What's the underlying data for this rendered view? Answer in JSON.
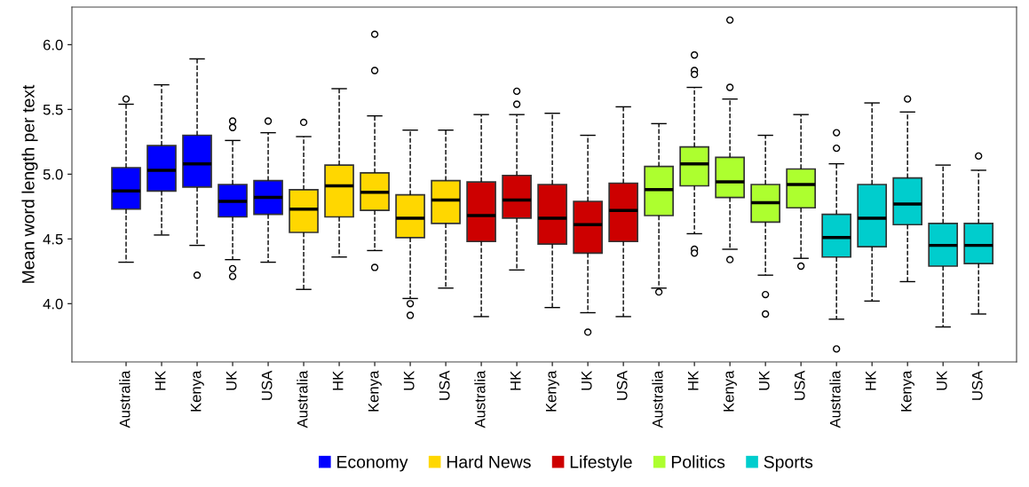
{
  "chart_data": {
    "type": "box",
    "ylabel": "Mean word length per text",
    "categories": [
      "Australia",
      "HK",
      "Kenya",
      "UK",
      "USA",
      "Australia",
      "HK",
      "Kenya",
      "UK",
      "USA",
      "Australia",
      "HK",
      "Kenya",
      "UK",
      "USA",
      "Australia",
      "HK",
      "Kenya",
      "UK",
      "USA",
      "Australia",
      "HK",
      "Kenya",
      "UK",
      "USA"
    ],
    "ylim": [
      3.55,
      6.29
    ],
    "yticks": [
      {
        "value": 4,
        "label": "4.0"
      },
      {
        "value": 4.5,
        "label": "4.5"
      },
      {
        "value": 5,
        "label": "5.0"
      },
      {
        "value": 5.5,
        "label": "5.5"
      },
      {
        "value": 6,
        "label": "6.0"
      }
    ],
    "grid": false,
    "legend": "bottom",
    "line_style": "dashed",
    "series": [
      {
        "name": "Economy",
        "color": "#0000ff",
        "boxes": [
          {
            "low": 4.32,
            "q1": 4.73,
            "median": 4.87,
            "q3": 5.05,
            "high": 5.54,
            "outliers": [
              5.58
            ]
          },
          {
            "low": 4.53,
            "q1": 4.87,
            "median": 5.03,
            "q3": 5.22,
            "high": 5.69
          },
          {
            "low": 4.45,
            "q1": 4.9,
            "median": 5.08,
            "q3": 5.3,
            "high": 5.89,
            "outliers": [
              4.22
            ]
          },
          {
            "low": 4.34,
            "q1": 4.67,
            "median": 4.79,
            "q3": 4.92,
            "high": 5.26,
            "outliers": [
              5.41,
              5.36,
              4.27,
              4.21
            ]
          },
          {
            "low": 4.32,
            "q1": 4.69,
            "median": 4.82,
            "q3": 4.95,
            "high": 5.32,
            "outliers": [
              5.41
            ]
          },
          null,
          null,
          null,
          null,
          null,
          null,
          null,
          null,
          null,
          null,
          null,
          null,
          null,
          null,
          null,
          null,
          null,
          null,
          null,
          null
        ]
      },
      {
        "name": "Hard News",
        "color": "#ffd700",
        "boxes": [
          null,
          null,
          null,
          null,
          null,
          {
            "low": 4.11,
            "q1": 4.55,
            "median": 4.73,
            "q3": 4.88,
            "high": 5.29,
            "outliers": [
              5.4
            ]
          },
          {
            "low": 4.36,
            "q1": 4.67,
            "median": 4.91,
            "q3": 5.07,
            "high": 5.66
          },
          {
            "low": 4.41,
            "q1": 4.72,
            "median": 4.86,
            "q3": 5.01,
            "high": 5.45,
            "outliers": [
              6.08,
              5.8,
              4.28
            ]
          },
          {
            "low": 4.04,
            "q1": 4.51,
            "median": 4.66,
            "q3": 4.84,
            "high": 5.34,
            "outliers": [
              4.0,
              3.91
            ]
          },
          {
            "low": 4.12,
            "q1": 4.62,
            "median": 4.8,
            "q3": 4.95,
            "high": 5.34
          },
          null,
          null,
          null,
          null,
          null,
          null,
          null,
          null,
          null,
          null,
          null,
          null,
          null,
          null,
          null
        ]
      },
      {
        "name": "Lifestyle",
        "color": "#cd0000",
        "boxes": [
          null,
          null,
          null,
          null,
          null,
          null,
          null,
          null,
          null,
          null,
          {
            "low": 3.9,
            "q1": 4.48,
            "median": 4.68,
            "q3": 4.94,
            "high": 5.46
          },
          {
            "low": 4.26,
            "q1": 4.66,
            "median": 4.8,
            "q3": 4.99,
            "high": 5.46,
            "outliers": [
              5.64,
              5.54
            ]
          },
          {
            "low": 3.97,
            "q1": 4.46,
            "median": 4.66,
            "q3": 4.92,
            "high": 5.47
          },
          {
            "low": 3.93,
            "q1": 4.39,
            "median": 4.61,
            "q3": 4.79,
            "high": 5.3,
            "outliers": [
              3.78
            ]
          },
          {
            "low": 3.9,
            "q1": 4.48,
            "median": 4.72,
            "q3": 4.93,
            "high": 5.52
          },
          null,
          null,
          null,
          null,
          null,
          null,
          null,
          null,
          null,
          null
        ]
      },
      {
        "name": "Politics",
        "color": "#adff2f",
        "boxes": [
          null,
          null,
          null,
          null,
          null,
          null,
          null,
          null,
          null,
          null,
          null,
          null,
          null,
          null,
          null,
          {
            "low": 4.12,
            "q1": 4.68,
            "median": 4.88,
            "q3": 5.06,
            "high": 5.39,
            "outliers": [
              4.09
            ]
          },
          {
            "low": 4.54,
            "q1": 4.91,
            "median": 5.08,
            "q3": 5.21,
            "high": 5.67,
            "outliers": [
              5.92,
              5.8,
              5.77,
              4.42,
              4.39
            ]
          },
          {
            "low": 4.42,
            "q1": 4.82,
            "median": 4.94,
            "q3": 5.13,
            "high": 5.58,
            "outliers": [
              6.19,
              5.67,
              4.34
            ]
          },
          {
            "low": 4.22,
            "q1": 4.63,
            "median": 4.78,
            "q3": 4.92,
            "high": 5.3,
            "outliers": [
              4.07,
              3.92
            ]
          },
          {
            "low": 4.35,
            "q1": 4.74,
            "median": 4.92,
            "q3": 5.04,
            "high": 5.46,
            "outliers": [
              4.29
            ]
          },
          null,
          null,
          null,
          null,
          null
        ]
      },
      {
        "name": "Sports",
        "color": "#00cdcd",
        "boxes": [
          null,
          null,
          null,
          null,
          null,
          null,
          null,
          null,
          null,
          null,
          null,
          null,
          null,
          null,
          null,
          null,
          null,
          null,
          null,
          null,
          {
            "low": 3.88,
            "q1": 4.36,
            "median": 4.51,
            "q3": 4.69,
            "high": 5.08,
            "outliers": [
              5.32,
              5.2,
              3.65
            ]
          },
          {
            "low": 4.02,
            "q1": 4.44,
            "median": 4.66,
            "q3": 4.92,
            "high": 5.55
          },
          {
            "low": 4.17,
            "q1": 4.61,
            "median": 4.77,
            "q3": 4.97,
            "high": 5.48,
            "outliers": [
              5.58
            ]
          },
          {
            "low": 3.82,
            "q1": 4.29,
            "median": 4.45,
            "q3": 4.62,
            "high": 5.07
          },
          {
            "low": 3.92,
            "q1": 4.31,
            "median": 4.45,
            "q3": 4.62,
            "high": 5.03,
            "outliers": [
              5.14
            ]
          }
        ]
      }
    ]
  }
}
